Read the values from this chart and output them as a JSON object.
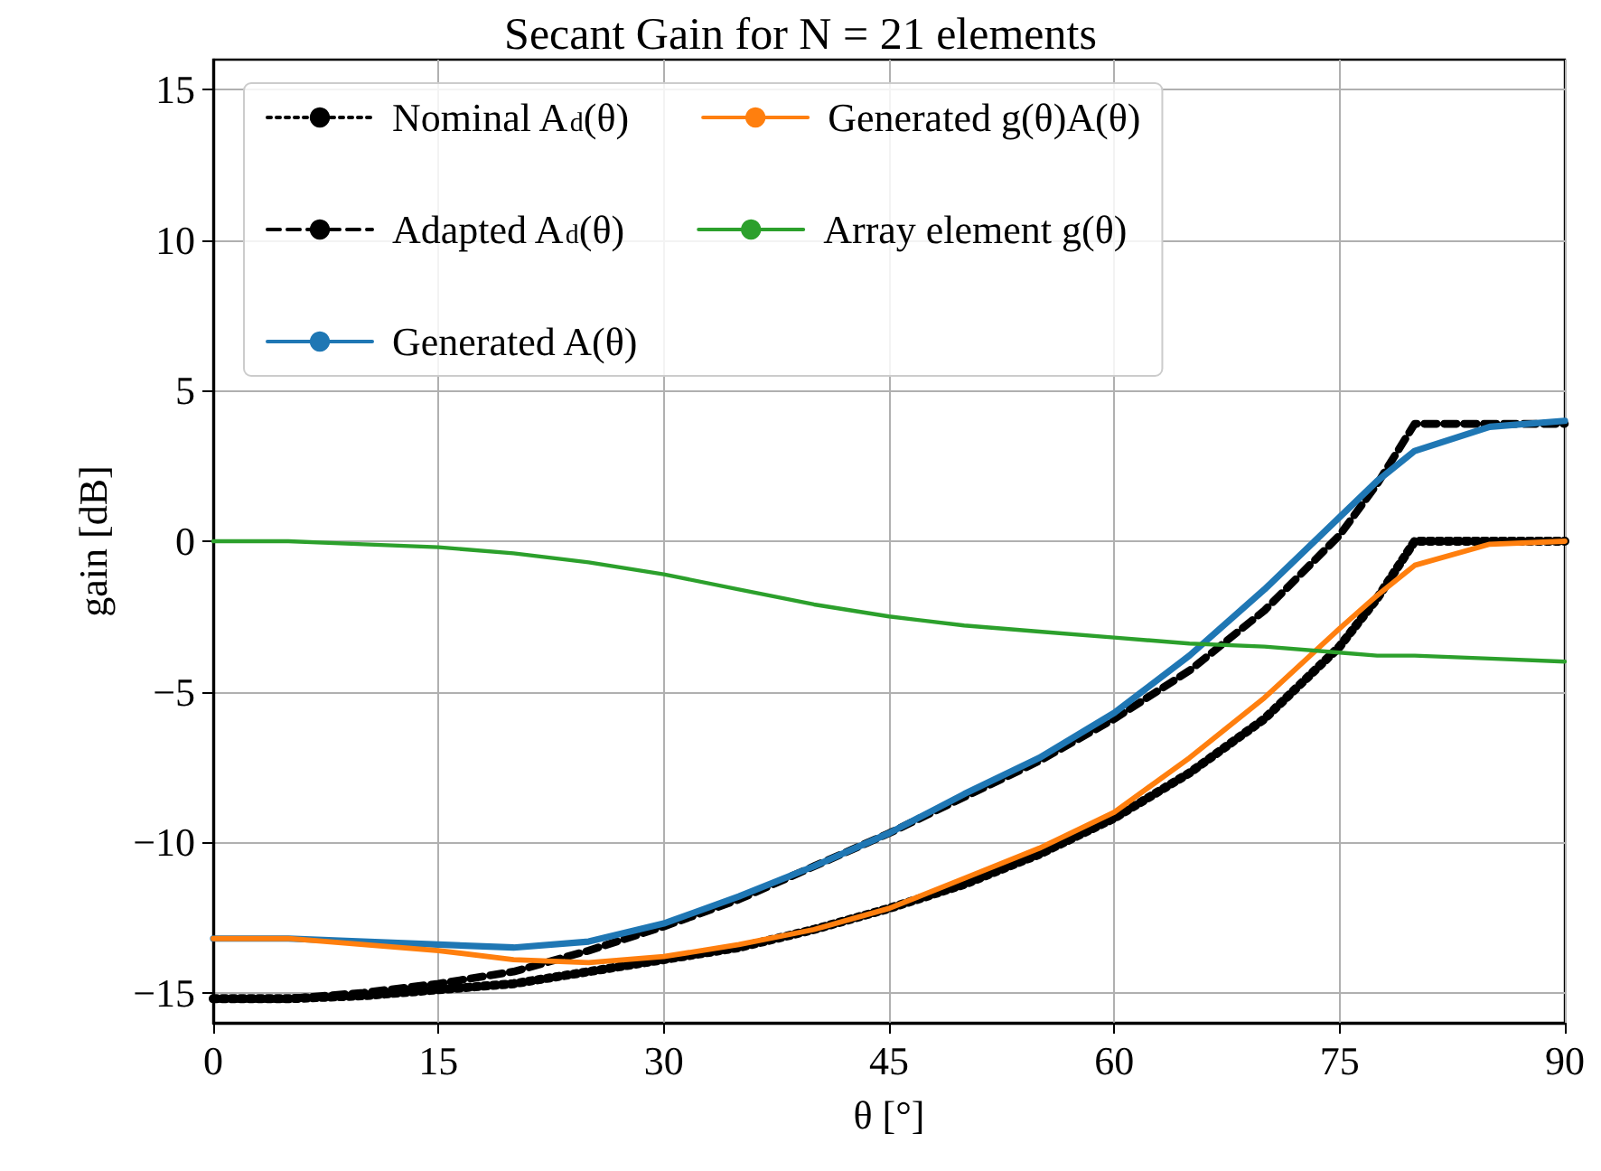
{
  "chart_data": {
    "type": "line",
    "title": "Secant Gain for N = 21 elements",
    "xlabel": "θ [°]",
    "ylabel": "gain [dB]",
    "x": [
      0,
      5,
      10,
      15,
      20,
      25,
      30,
      35,
      40,
      45,
      50,
      55,
      60,
      65,
      70,
      75,
      77.5,
      80,
      85,
      90
    ],
    "series": [
      {
        "name": "Nominal A$_{d}$(θ)",
        "color": "#000000",
        "line_style": "dotted",
        "values": [
          -15.2,
          -15.2,
          -15.1,
          -14.9,
          -14.7,
          -14.3,
          -13.9,
          -13.5,
          -12.9,
          -12.2,
          -11.4,
          -10.4,
          -9.2,
          -7.7,
          -5.9,
          -3.5,
          -1.9,
          0,
          0,
          0
        ]
      },
      {
        "name": "Adapted A$_{d}$(θ)",
        "color": "#000000",
        "line_style": "dashed",
        "values": [
          -15.2,
          -15.2,
          -15.0,
          -14.7,
          -14.3,
          -13.6,
          -12.8,
          -11.9,
          -10.8,
          -9.7,
          -8.5,
          -7.3,
          -5.9,
          -4.3,
          -2.3,
          0.2,
          1.9,
          3.9,
          3.9,
          3.9
        ]
      },
      {
        "name": "Generated A(θ)",
        "color": "#1f77b4",
        "line_style": "solid",
        "values": [
          -13.2,
          -13.2,
          -13.3,
          -13.4,
          -13.5,
          -13.3,
          -12.7,
          -11.8,
          -10.8,
          -9.7,
          -8.4,
          -7.2,
          -5.7,
          -3.8,
          -1.6,
          0.8,
          2.0,
          3.0,
          3.8,
          4.0
        ]
      },
      {
        "name": "Generated g(θ)A(θ)",
        "color": "#ff7f0e",
        "line_style": "solid",
        "values": [
          -13.2,
          -13.2,
          -13.4,
          -13.6,
          -13.9,
          -14.0,
          -13.8,
          -13.4,
          -12.9,
          -12.2,
          -11.2,
          -10.2,
          -9.0,
          -7.2,
          -5.2,
          -2.9,
          -1.8,
          -0.8,
          -0.1,
          0
        ]
      },
      {
        "name": "Array element g(θ)",
        "color": "#2ca02c",
        "line_style": "solid",
        "values": [
          0,
          0,
          -0.1,
          -0.2,
          -0.4,
          -0.7,
          -1.1,
          -1.6,
          -2.1,
          -2.5,
          -2.8,
          -3.0,
          -3.2,
          -3.4,
          -3.5,
          -3.7,
          -3.8,
          -3.8,
          -3.9,
          -4.0
        ]
      }
    ],
    "xlim": [
      0,
      90
    ],
    "xticks": [
      0,
      15,
      30,
      45,
      60,
      75,
      90
    ],
    "ylim": [
      -16,
      16
    ],
    "yticks": [
      -15,
      -10,
      -5,
      0,
      5,
      10,
      15
    ],
    "grid": true,
    "legend": "top left",
    "marker": "none"
  }
}
